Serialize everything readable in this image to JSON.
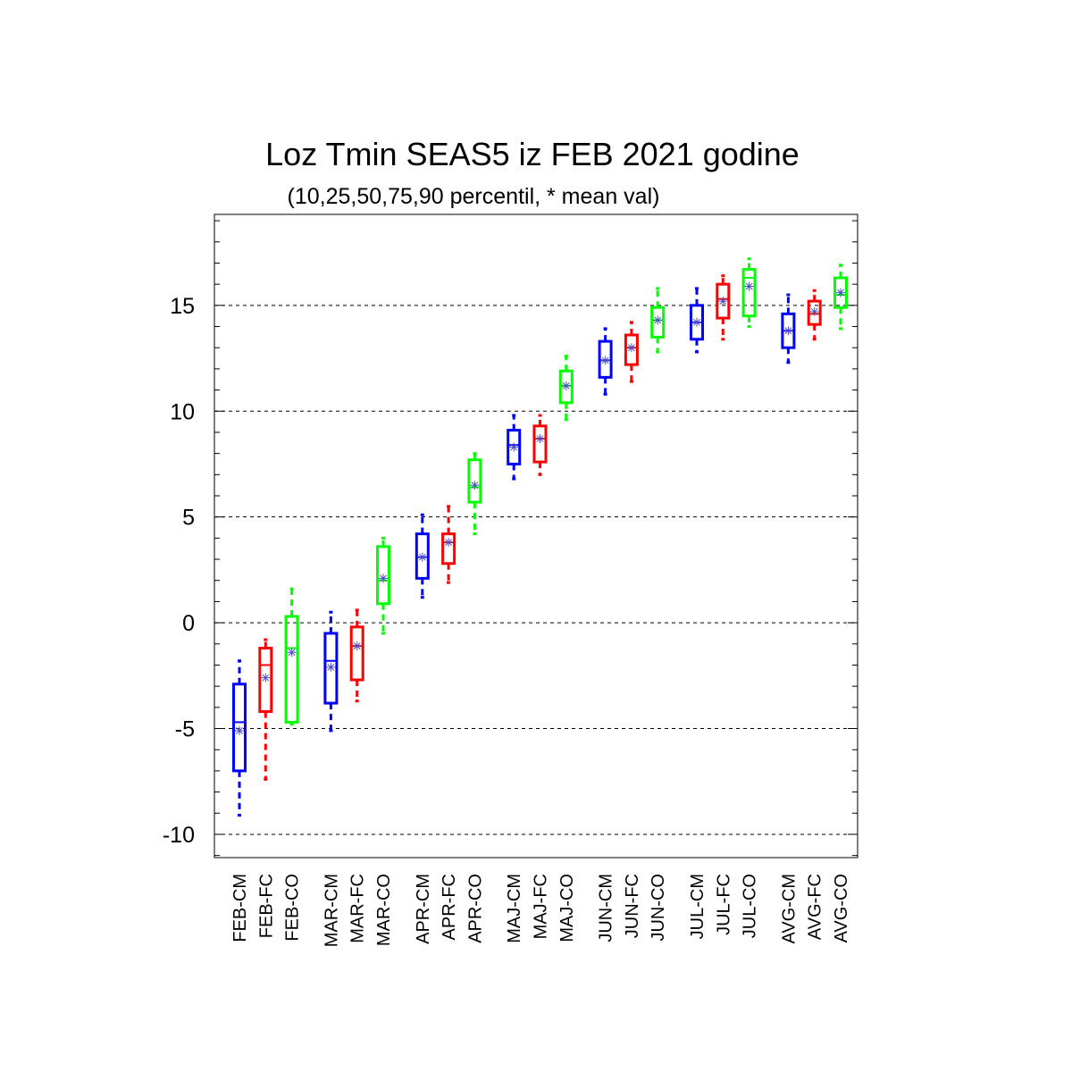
{
  "chart_data": {
    "type": "box",
    "title": "Loz Tmin SEAS5 iz FEB 2021 godine",
    "subtitle": "(10,25,50,75,90 percentil, * mean val)",
    "xlabel": "",
    "ylabel": "",
    "ylim": [
      -11.1,
      19.3
    ],
    "yticks": [
      -10,
      -5,
      0,
      5,
      10,
      15
    ],
    "grid": "horizontal dashed",
    "series_colors": {
      "CM": "#0000ff",
      "FC": "#ff0000",
      "CO": "#00ff00"
    },
    "mean_marker_color": "#4b4bc8",
    "boxes": [
      {
        "label": "FEB-CM",
        "group": "CM",
        "p10": -9.1,
        "p25": -7.0,
        "p50": -4.7,
        "p75": -2.9,
        "p90": -1.8,
        "mean": -5.1
      },
      {
        "label": "FEB-FC",
        "group": "FC",
        "p10": -7.4,
        "p25": -4.2,
        "p50": -2.0,
        "p75": -1.2,
        "p90": -0.8,
        "mean": -2.6
      },
      {
        "label": "FEB-CO",
        "group": "CO",
        "p10": -4.8,
        "p25": -4.7,
        "p50": -1.2,
        "p75": 0.3,
        "p90": 1.6,
        "mean": -1.4
      },
      {
        "label": "MAR-CM",
        "group": "CM",
        "p10": -5.1,
        "p25": -3.8,
        "p50": -1.8,
        "p75": -0.5,
        "p90": 0.5,
        "mean": -2.1
      },
      {
        "label": "MAR-FC",
        "group": "FC",
        "p10": -3.7,
        "p25": -2.7,
        "p50": -1.1,
        "p75": -0.2,
        "p90": 0.6,
        "mean": -1.1
      },
      {
        "label": "MAR-CO",
        "group": "CO",
        "p10": -0.5,
        "p25": 0.9,
        "p50": 2.0,
        "p75": 3.6,
        "p90": 4.0,
        "mean": 2.1
      },
      {
        "label": "APR-CM",
        "group": "CM",
        "p10": 1.2,
        "p25": 2.1,
        "p50": 3.1,
        "p75": 4.2,
        "p90": 5.1,
        "mean": 3.1
      },
      {
        "label": "APR-FC",
        "group": "FC",
        "p10": 1.9,
        "p25": 2.8,
        "p50": 3.8,
        "p75": 4.2,
        "p90": 5.5,
        "mean": 3.8
      },
      {
        "label": "APR-CO",
        "group": "CO",
        "p10": 4.2,
        "p25": 5.7,
        "p50": 6.4,
        "p75": 7.7,
        "p90": 8.0,
        "mean": 6.5
      },
      {
        "label": "MAJ-CM",
        "group": "CM",
        "p10": 6.8,
        "p25": 7.5,
        "p50": 8.4,
        "p75": 9.1,
        "p90": 9.8,
        "mean": 8.3
      },
      {
        "label": "MAJ-FC",
        "group": "FC",
        "p10": 7.0,
        "p25": 7.6,
        "p50": 8.7,
        "p75": 9.3,
        "p90": 9.8,
        "mean": 8.7
      },
      {
        "label": "MAJ-CO",
        "group": "CO",
        "p10": 9.6,
        "p25": 10.4,
        "p50": 11.2,
        "p75": 11.9,
        "p90": 12.6,
        "mean": 11.2
      },
      {
        "label": "JUN-CM",
        "group": "CM",
        "p10": 10.8,
        "p25": 11.6,
        "p50": 12.4,
        "p75": 13.3,
        "p90": 13.9,
        "mean": 12.4
      },
      {
        "label": "JUN-FC",
        "group": "FC",
        "p10": 11.4,
        "p25": 12.2,
        "p50": 13.0,
        "p75": 13.6,
        "p90": 14.2,
        "mean": 13.0
      },
      {
        "label": "JUN-CO",
        "group": "CO",
        "p10": 12.8,
        "p25": 13.5,
        "p50": 14.3,
        "p75": 14.9,
        "p90": 15.8,
        "mean": 14.3
      },
      {
        "label": "JUL-CM",
        "group": "CM",
        "p10": 12.8,
        "p25": 13.4,
        "p50": 14.2,
        "p75": 15.0,
        "p90": 15.8,
        "mean": 14.2
      },
      {
        "label": "JUL-FC",
        "group": "FC",
        "p10": 13.4,
        "p25": 14.4,
        "p50": 15.3,
        "p75": 16.0,
        "p90": 16.4,
        "mean": 15.2
      },
      {
        "label": "JUL-CO",
        "group": "CO",
        "p10": 14.0,
        "p25": 14.5,
        "p50": 16.3,
        "p75": 16.7,
        "p90": 17.2,
        "mean": 15.9
      },
      {
        "label": "AVG-CM",
        "group": "CM",
        "p10": 12.3,
        "p25": 13.0,
        "p50": 13.8,
        "p75": 14.6,
        "p90": 15.5,
        "mean": 13.8
      },
      {
        "label": "AVG-FC",
        "group": "FC",
        "p10": 13.4,
        "p25": 14.1,
        "p50": 14.6,
        "p75": 15.2,
        "p90": 15.7,
        "mean": 14.7
      },
      {
        "label": "AVG-CO",
        "group": "CO",
        "p10": 13.9,
        "p25": 14.9,
        "p50": 15.5,
        "p75": 16.3,
        "p90": 16.9,
        "mean": 15.6
      }
    ]
  }
}
